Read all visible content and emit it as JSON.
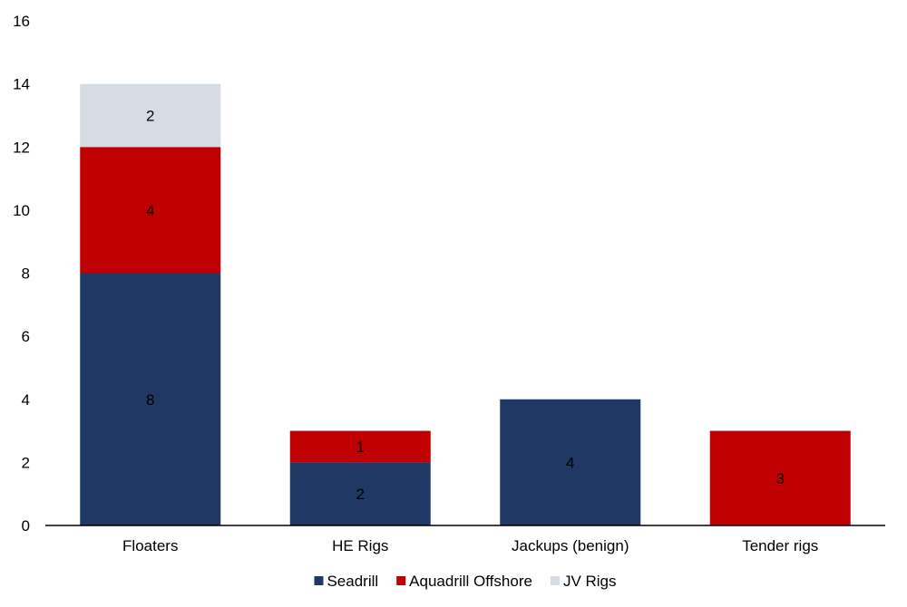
{
  "chart_data": {
    "type": "bar",
    "stacked": true,
    "categories": [
      "Floaters",
      "HE Rigs",
      "Jackups (benign)",
      "Tender rigs"
    ],
    "series": [
      {
        "name": "Seadrill",
        "values": [
          8,
          2,
          4,
          0
        ],
        "color": "#1F3864"
      },
      {
        "name": "Aquadrill Offshore",
        "values": [
          4,
          1,
          0,
          3
        ],
        "color": "#C00000"
      },
      {
        "name": "JV Rigs",
        "values": [
          2,
          0,
          0,
          0
        ],
        "color": "#D6DCE4"
      }
    ],
    "ylim": [
      0,
      16
    ],
    "yticks": [
      "0",
      "2",
      "4",
      "6",
      "8",
      "10",
      "12",
      "14",
      "16"
    ],
    "grid": false,
    "legend_position": "bottom"
  }
}
